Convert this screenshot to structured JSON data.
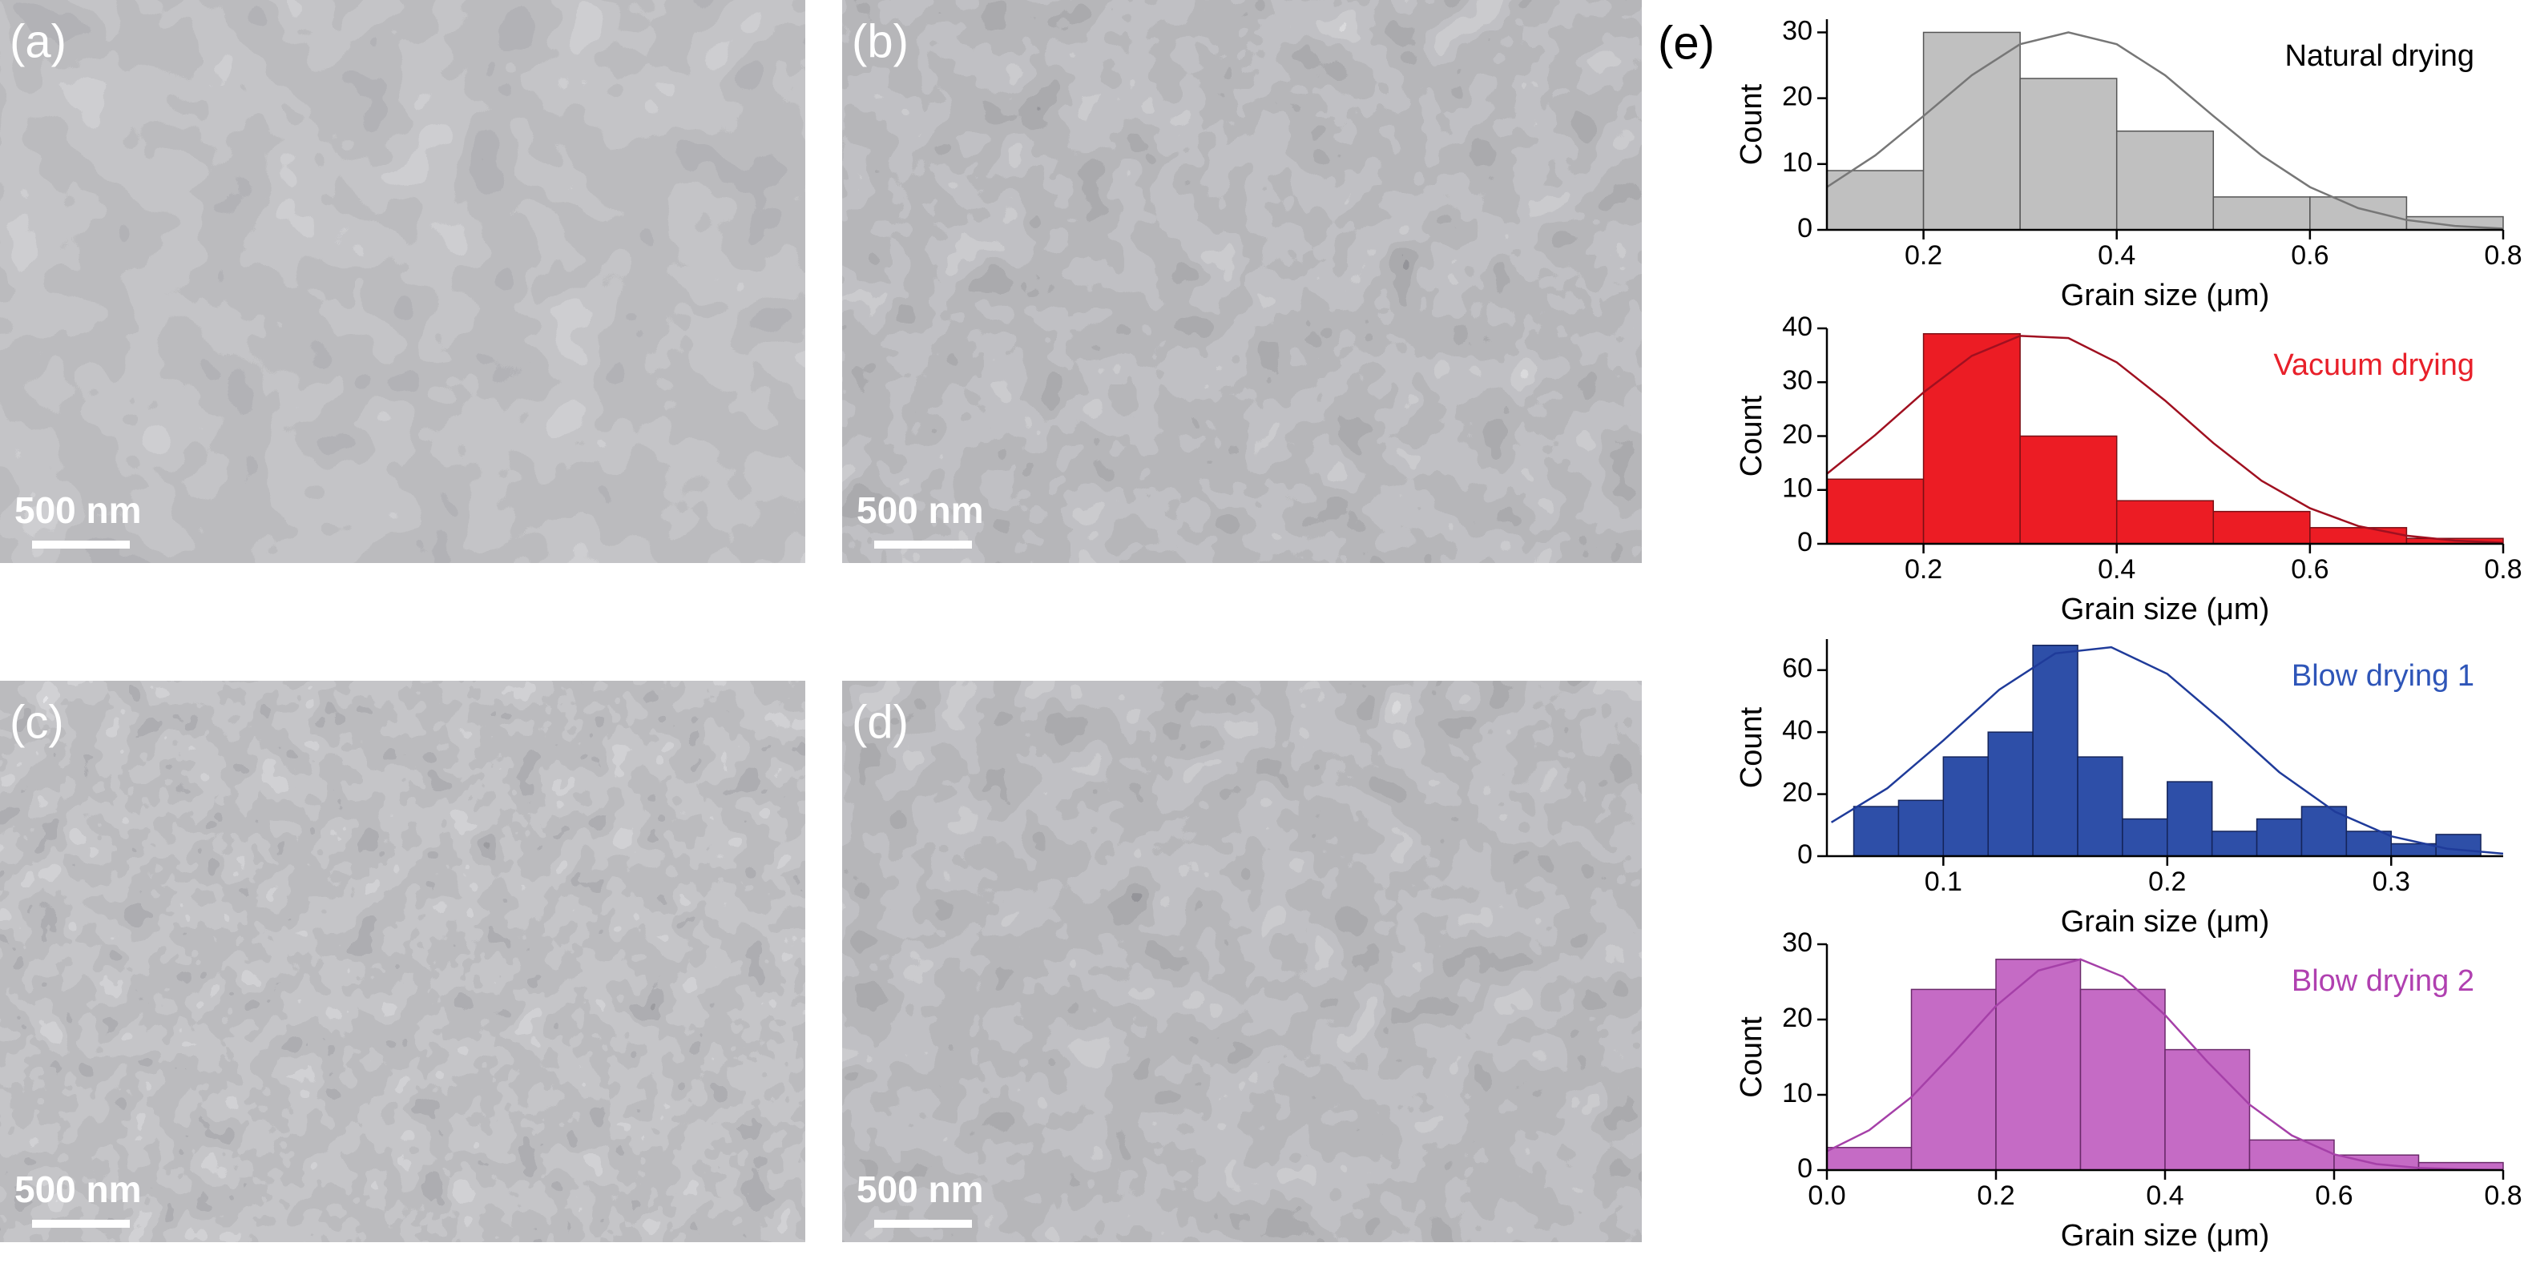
{
  "panels": [
    {
      "label": "(a)",
      "scale_bar": "500 nm"
    },
    {
      "label": "(b)",
      "scale_bar": "500 nm"
    },
    {
      "label": "(c)",
      "scale_bar": "500 nm"
    },
    {
      "label": "(d)",
      "scale_bar": "500 nm"
    }
  ],
  "chart_panel_label": "(e)",
  "chart_data": [
    {
      "type": "histogram",
      "title": "Natural drying",
      "title_color": "#000000",
      "xlabel": "Grain size (μm)",
      "ylabel": "Count",
      "bins": [
        0.1,
        0.2,
        0.3,
        0.4,
        0.5,
        0.6,
        0.7,
        0.8
      ],
      "values": [
        9,
        30,
        23,
        15,
        5,
        5,
        2
      ],
      "color": "#c0c0c0",
      "edge_color": "#555555",
      "fit": {
        "color": "#777777",
        "x": [
          0.1,
          0.15,
          0.2,
          0.25,
          0.3,
          0.35,
          0.4,
          0.45,
          0.5,
          0.55,
          0.6,
          0.65,
          0.7,
          0.75,
          0.8
        ],
        "values": [
          6.5,
          11.3,
          17.3,
          23.5,
          28.2,
          30,
          28.2,
          23.5,
          17.3,
          11.3,
          6.5,
          3.3,
          1.5,
          0.6,
          0.2
        ]
      },
      "xlim": [
        0.1,
        0.8
      ],
      "ylim": [
        0,
        32
      ],
      "xticks": [
        0.2,
        0.4,
        0.6,
        0.8
      ],
      "yticks": [
        0,
        10,
        20,
        30
      ]
    },
    {
      "type": "histogram",
      "title": "Vacuum drying",
      "title_color": "#e8202a",
      "xlabel": "Grain size (μm)",
      "ylabel": "Count",
      "bins": [
        0.1,
        0.2,
        0.3,
        0.4,
        0.5,
        0.6,
        0.7,
        0.8
      ],
      "values": [
        12,
        39,
        20,
        8,
        6,
        3,
        1
      ],
      "color": "#ec1c24",
      "edge_color": "#7a1015",
      "fit": {
        "color": "#a01020",
        "x": [
          0.1,
          0.15,
          0.2,
          0.25,
          0.3,
          0.35,
          0.4,
          0.45,
          0.5,
          0.55,
          0.6,
          0.65,
          0.7,
          0.75,
          0.8
        ],
        "values": [
          13,
          20.2,
          28.1,
          34.9,
          38.6,
          38.2,
          33.7,
          26.6,
          18.7,
          11.7,
          6.6,
          3.3,
          1.5,
          0.6,
          0.2
        ]
      },
      "xlim": [
        0.1,
        0.8
      ],
      "ylim": [
        0,
        40
      ],
      "xticks": [
        0.2,
        0.4,
        0.6,
        0.8
      ],
      "yticks": [
        0,
        10,
        20,
        30,
        40
      ]
    },
    {
      "type": "histogram",
      "title": "Blow drying 1",
      "title_color": "#2e55b8",
      "xlabel": "Grain size (μm)",
      "ylabel": "Count",
      "bins": [
        0.06,
        0.08,
        0.1,
        0.12,
        0.14,
        0.16,
        0.18,
        0.2,
        0.22,
        0.24,
        0.26,
        0.28,
        0.3,
        0.32,
        0.34
      ],
      "values": [
        16,
        18,
        32,
        40,
        68,
        32,
        12,
        24,
        8,
        12,
        16,
        8,
        4,
        7
      ],
      "color": "#2e4fa8",
      "edge_color": "#14245a",
      "fit": {
        "color": "#1f3b9a",
        "x": [
          0.05,
          0.075,
          0.1,
          0.125,
          0.15,
          0.175,
          0.2,
          0.225,
          0.25,
          0.275,
          0.3,
          0.325,
          0.35
        ],
        "values": [
          10.9,
          21.9,
          37.3,
          53.7,
          65.4,
          67.4,
          58.8,
          43.4,
          27.1,
          14.3,
          6.4,
          2.4,
          0.8
        ]
      },
      "xlim": [
        0.048,
        0.35
      ],
      "ylim": [
        0,
        70
      ],
      "xticks": [
        0.1,
        0.2,
        0.3
      ],
      "yticks": [
        0,
        20,
        40,
        60
      ]
    },
    {
      "type": "histogram",
      "title": "Blow drying 2",
      "title_color": "#b040b0",
      "xlabel": "Grain size (μm)",
      "ylabel": "Count",
      "bins": [
        0,
        0.1,
        0.2,
        0.3,
        0.4,
        0.5,
        0.6,
        0.7,
        0.8
      ],
      "values": [
        3,
        24,
        28,
        24,
        16,
        4,
        2,
        1
      ],
      "color": "#c56bc5",
      "edge_color": "#6a2a6a",
      "fit": {
        "color": "#a540a8",
        "x": [
          0,
          0.05,
          0.1,
          0.15,
          0.2,
          0.25,
          0.3,
          0.35,
          0.4,
          0.45,
          0.5,
          0.55,
          0.6,
          0.65,
          0.7,
          0.75,
          0.8
        ],
        "values": [
          2.5,
          5.3,
          9.7,
          15.6,
          21.8,
          26.5,
          28,
          25.7,
          20.6,
          14.4,
          8.7,
          4.6,
          2.1,
          0.8,
          0.3,
          0.1,
          0
        ]
      },
      "xlim": [
        0,
        0.8
      ],
      "ylim": [
        0,
        30
      ],
      "xticks": [
        {
          "value": 0,
          "label": "0.0"
        },
        0.2,
        0.4,
        0.6,
        0.8
      ],
      "yticks": [
        0,
        10,
        20,
        30
      ]
    }
  ]
}
